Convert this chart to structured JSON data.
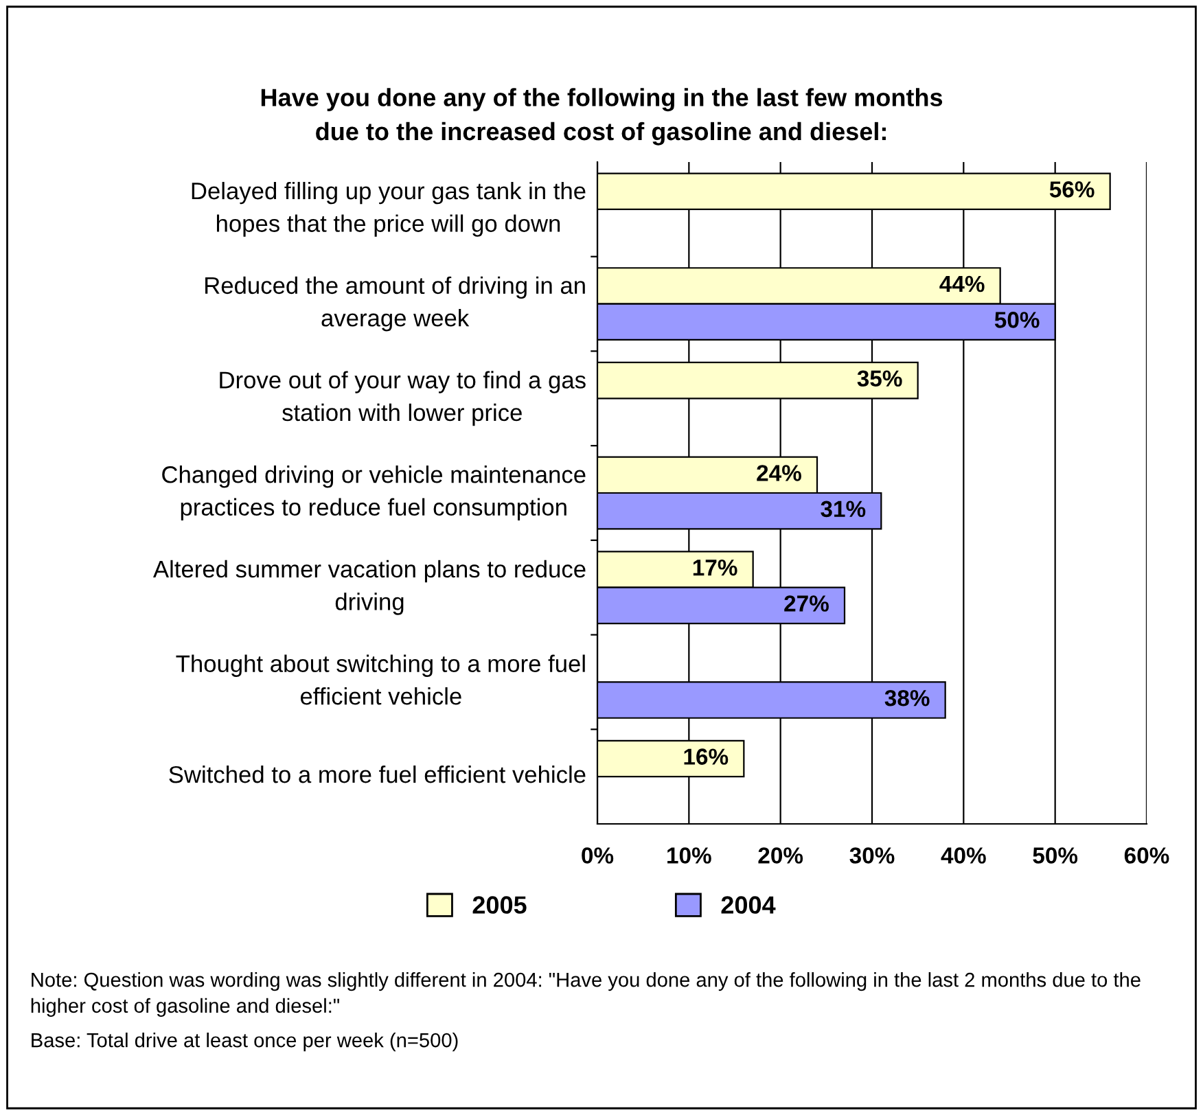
{
  "chart_data": {
    "type": "bar",
    "orientation": "horizontal",
    "title": "Have you done any of the following in the last few months\ndue to the increased cost of gasoline and diesel:",
    "categories": [
      "Delayed filling up your gas tank in the\nhopes that the price will go down",
      "Reduced the amount of driving in an\naverage week",
      "Drove out of your way to find a gas\nstation with lower price",
      "Changed driving or vehicle maintenance\npractices to reduce fuel consumption",
      "Altered summer vacation plans to reduce\ndriving",
      "Thought about switching to a more fuel\nefficient vehicle",
      "Switched to a more fuel efficient vehicle"
    ],
    "series": [
      {
        "name": "2005",
        "color": "#ffffcc",
        "values": [
          56,
          44,
          35,
          24,
          17,
          null,
          16
        ],
        "value_labels": [
          "56%",
          "44%",
          "35%",
          "24%",
          "17%",
          null,
          "16%"
        ]
      },
      {
        "name": "2004",
        "color": "#9999ff",
        "values": [
          null,
          50,
          null,
          31,
          27,
          38,
          null
        ],
        "value_labels": [
          null,
          "50%",
          null,
          "31%",
          "27%",
          "38%",
          null
        ]
      }
    ],
    "xlim": [
      0,
      60
    ],
    "xticks": [
      {
        "value": 0,
        "label": "0%"
      },
      {
        "value": 10,
        "label": "10%"
      },
      {
        "value": 20,
        "label": "20%"
      },
      {
        "value": 30,
        "label": "30%"
      },
      {
        "value": 40,
        "label": "40%"
      },
      {
        "value": 50,
        "label": "50%"
      },
      {
        "value": 60,
        "label": "60%"
      }
    ],
    "grid": "x",
    "legend": "bottom",
    "annotations": [
      "Note: Question was wording was slightly different in 2004: \"Have you done any of the following in the last 2 months due to the higher cost of gasoline and diesel:\"",
      "Base: Total drive at least once per week (n=500)"
    ]
  }
}
